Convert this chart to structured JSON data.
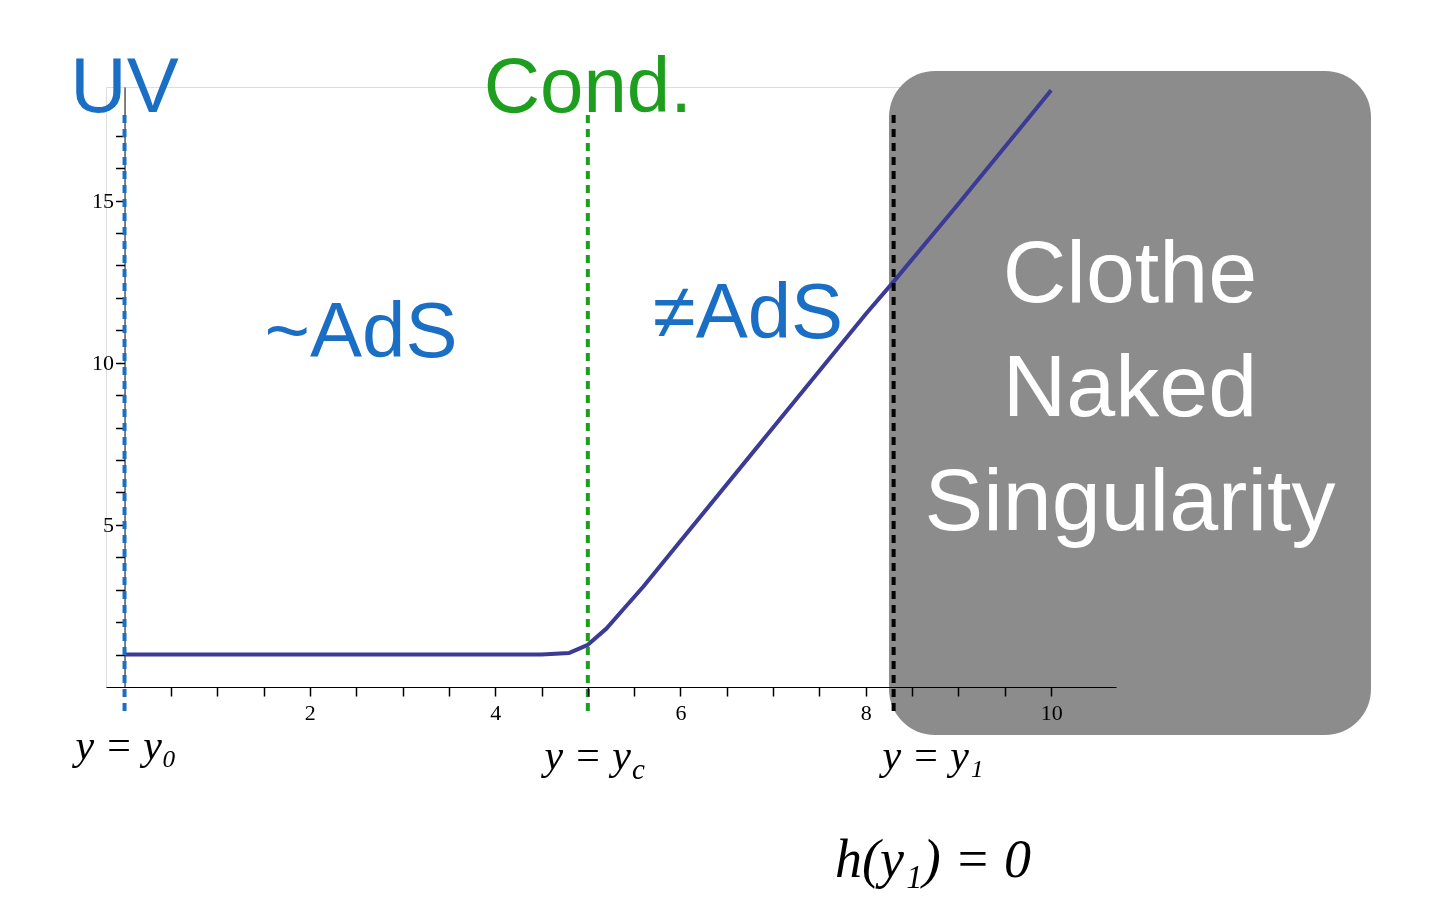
{
  "chart_data": {
    "type": "line",
    "x": [
      0,
      1,
      2,
      3,
      4,
      4.5,
      4.8,
      5.0,
      5.2,
      5.4,
      5.6,
      6,
      7,
      8,
      8.3,
      9,
      10
    ],
    "series": [
      {
        "color": "#3b3a94",
        "values": [
          1.0,
          1.0,
          1.0,
          1.0,
          1.0,
          1.0,
          1.05,
          1.3,
          1.8,
          2.45,
          3.1,
          4.5,
          8.0,
          11.5,
          12.5,
          14.9,
          18.4
        ]
      }
    ],
    "xlim": [
      -0.2,
      10.7
    ],
    "ylim": [
      0,
      18.5
    ],
    "xticks": [
      {
        "value": 0.5,
        "label": null
      },
      {
        "value": 1,
        "label": null
      },
      {
        "value": 1.5,
        "label": null
      },
      2,
      {
        "value": 2.5,
        "label": null
      },
      {
        "value": 3,
        "label": null
      },
      {
        "value": 3.5,
        "label": null
      },
      4,
      {
        "value": 4.5,
        "label": null
      },
      {
        "value": 5,
        "label": null
      },
      {
        "value": 5.5,
        "label": null
      },
      6,
      {
        "value": 6.5,
        "label": null
      },
      {
        "value": 7,
        "label": null
      },
      {
        "value": 7.5,
        "label": null
      },
      8,
      {
        "value": 8.5,
        "label": null
      },
      {
        "value": 9,
        "label": null
      },
      {
        "value": 9.5,
        "label": null
      },
      10
    ],
    "yticks": [
      {
        "value": 1,
        "label": null
      },
      {
        "value": 2,
        "label": null
      },
      {
        "value": 3,
        "label": null
      },
      {
        "value": 4,
        "label": null
      },
      5,
      {
        "value": 6,
        "label": null
      },
      {
        "value": 7,
        "label": null
      },
      {
        "value": 8,
        "label": null
      },
      {
        "value": 9,
        "label": null
      },
      10,
      {
        "value": 11,
        "label": null
      },
      {
        "value": 12,
        "label": null
      },
      {
        "value": 13,
        "label": null
      },
      {
        "value": 14,
        "label": null
      },
      15,
      {
        "value": 16,
        "label": null
      },
      {
        "value": 17,
        "label": null
      }
    ],
    "ref_lines": [
      {
        "axis": "x",
        "value": 0,
        "label": "UV",
        "color": "#1a6fc4",
        "line_style": "dashed"
      },
      {
        "axis": "x",
        "value": 5,
        "label": "Cond.",
        "color": "#1e9e1e",
        "line_style": "dashed"
      },
      {
        "axis": "x",
        "value": 8.3,
        "label": null,
        "color": "#000000",
        "line_style": "dashed"
      }
    ],
    "bands": [
      {
        "axis": "x",
        "from": 8.25,
        "to": 10.7,
        "label": "Clothe\nNaked\nSingularity",
        "color": "#8c8c8c"
      }
    ],
    "annotations": [
      "y = y₀",
      "y = y$_{c}$",
      "y = y₁",
      "~AdS",
      "≠AdS",
      "h(y₁) = 0"
    ],
    "grid": false,
    "marker": "none",
    "line_style": "solid"
  }
}
